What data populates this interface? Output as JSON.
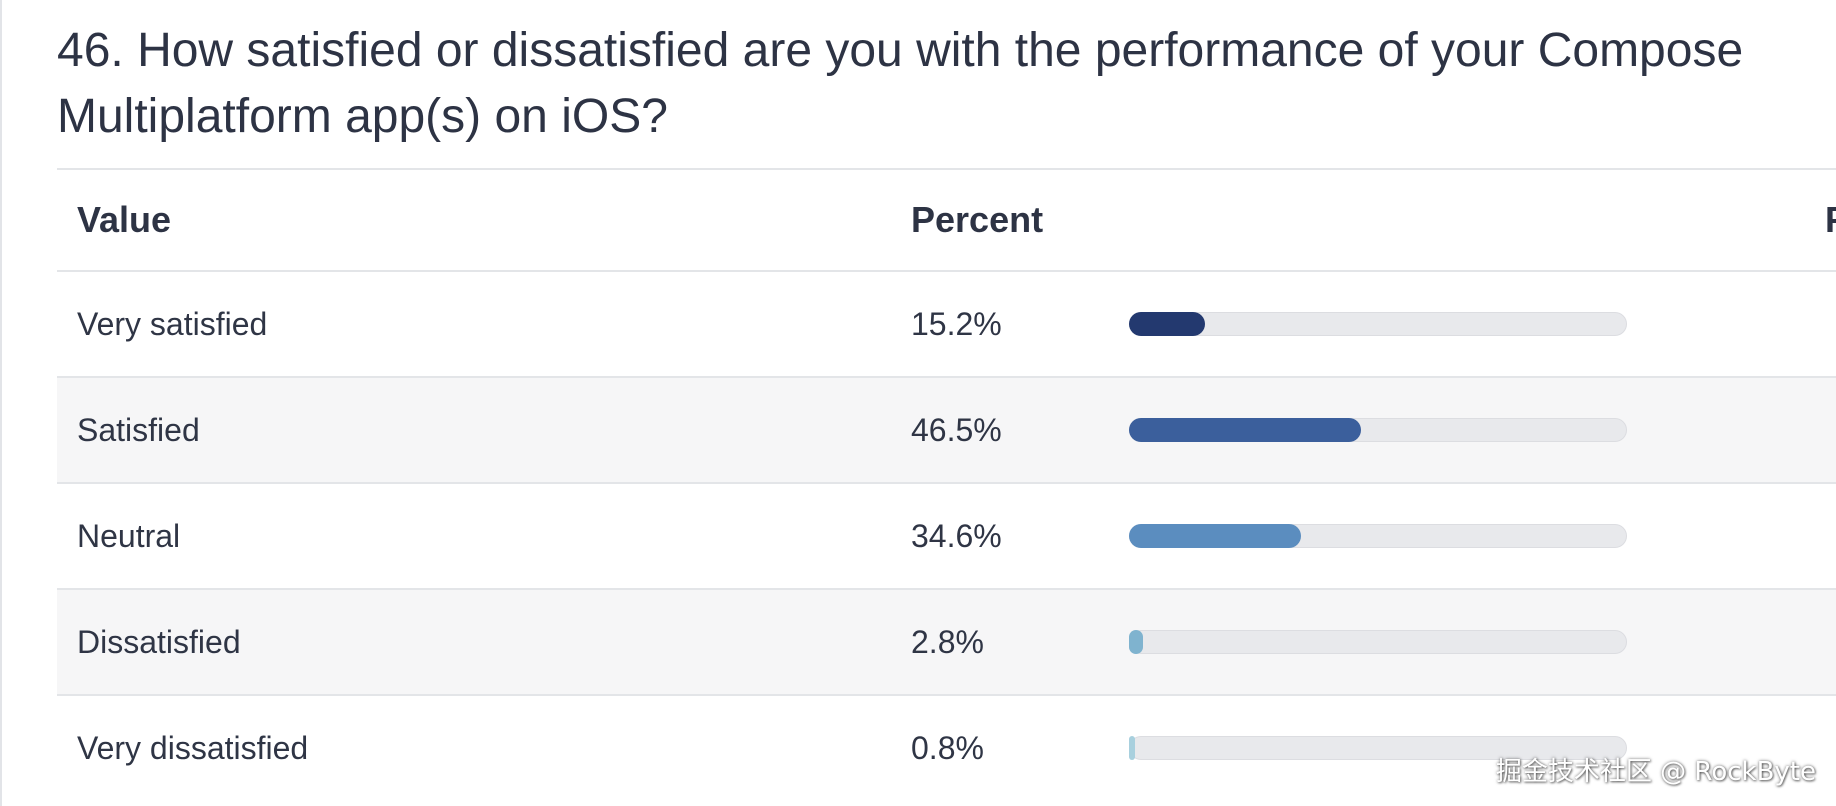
{
  "question": {
    "line1": "46. How satisfied or dissatisfied are you with the performance of your Compose",
    "line2": "Multiplatform app(s) on iOS?"
  },
  "table": {
    "headers": {
      "value": "Value",
      "percent": "Percent",
      "third": "F"
    },
    "rows": [
      {
        "value": "Very satisfied",
        "percent_label": "15.2%",
        "percent": 15.2,
        "color": "#23396f"
      },
      {
        "value": "Satisfied",
        "percent_label": "46.5%",
        "percent": 46.5,
        "color": "#3b5f9c"
      },
      {
        "value": "Neutral",
        "percent_label": "34.6%",
        "percent": 34.6,
        "color": "#5b8dbf"
      },
      {
        "value": "Dissatisfied",
        "percent_label": "2.8%",
        "percent": 2.8,
        "color": "#7fb3cf"
      },
      {
        "value": "Very dissatisfied",
        "percent_label": "0.8%",
        "percent": 0.8,
        "color": "#a8d0de"
      }
    ]
  },
  "watermark": "掘金技术社区 @ RockByte"
}
